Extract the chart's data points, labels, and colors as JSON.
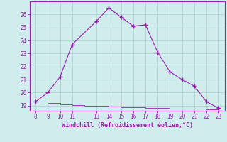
{
  "x": [
    8,
    9,
    10,
    11,
    13,
    14,
    15,
    16,
    17,
    18,
    19,
    20,
    21,
    22,
    23
  ],
  "y": [
    19.3,
    20.0,
    21.2,
    23.7,
    25.5,
    26.5,
    25.8,
    25.1,
    25.2,
    23.1,
    21.6,
    21.0,
    20.5,
    19.3,
    18.8
  ],
  "x_flat": [
    8,
    9,
    10,
    11,
    12,
    13,
    14,
    15,
    16,
    17,
    18,
    19,
    20,
    21,
    22,
    23
  ],
  "y_flat": [
    19.3,
    19.2,
    19.1,
    19.05,
    19.0,
    18.98,
    18.95,
    18.9,
    18.85,
    18.82,
    18.8,
    18.78,
    18.77,
    18.75,
    18.73,
    18.72
  ],
  "line_color": "#9B1FAF",
  "marker_color": "#9B1FAF",
  "bg_color": "#D0ECEC",
  "grid_color": "#AACECE",
  "xlabel": "Windchill (Refroidissement éolien,°C)",
  "xlabel_color": "#9B1FAF",
  "tick_color": "#9B1FAF",
  "ylim_min": 18.6,
  "ylim_max": 27.0,
  "yticks": [
    19,
    20,
    21,
    22,
    23,
    24,
    25,
    26
  ],
  "xticks": [
    8,
    9,
    10,
    11,
    13,
    14,
    15,
    16,
    17,
    18,
    19,
    20,
    21,
    22,
    23
  ],
  "spine_color": "#9B1FAF",
  "figwidth": 3.2,
  "figheight": 2.0,
  "dpi": 100
}
